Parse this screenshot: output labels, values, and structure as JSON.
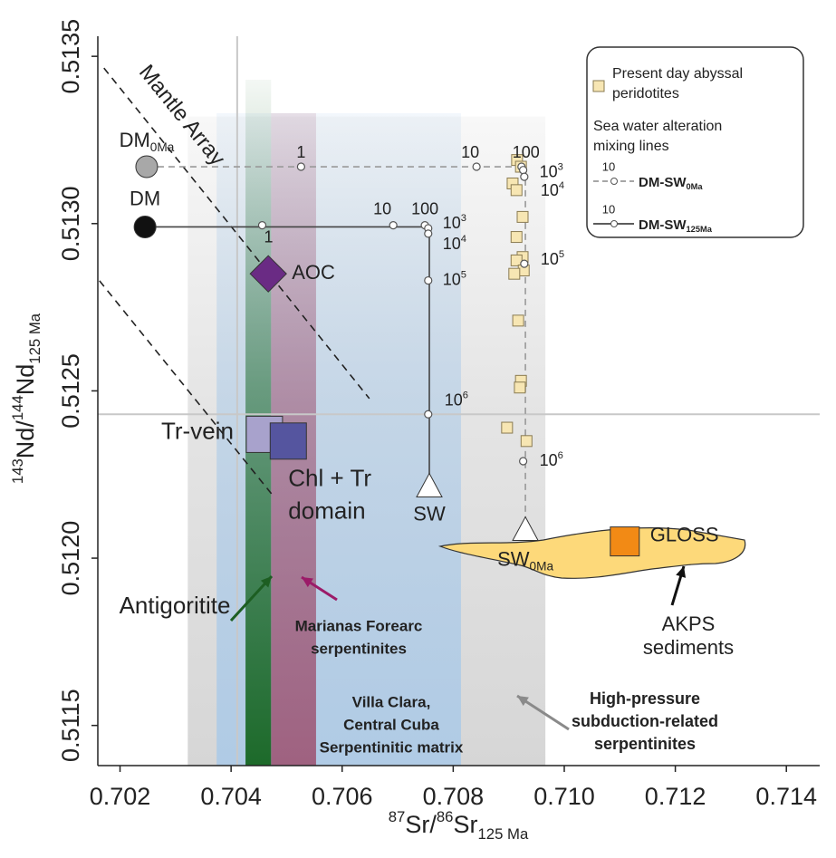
{
  "chart_data": {
    "type": "scatter",
    "xlabel": [
      "87",
      "Sr/",
      "86",
      "Sr",
      "125 Ma"
    ],
    "ylabel": [
      "143",
      "Nd/",
      "144",
      "Nd",
      "125 Ma"
    ],
    "xlim": [
      0.7016,
      0.7146
    ],
    "ylim": [
      0.51138,
      0.51356
    ],
    "xticks": [
      0.702,
      0.704,
      0.706,
      0.708,
      {
        "value": 0.71,
        "label": "0.710"
      },
      0.712,
      0.714
    ],
    "yticks": [
      0.5135,
      {
        "value": 0.513,
        "label": "0.5130"
      },
      0.5125,
      {
        "value": 0.512,
        "label": "0.5120"
      },
      0.5115
    ],
    "reference_lines": {
      "x": 0.70411,
      "y": 0.51243,
      "color": "#c8c8c8"
    },
    "fields": [
      {
        "x": [
          0.70322,
          0.70966
        ],
        "y": [
          0.51138,
          0.51332
        ],
        "color": "#cfcfcf",
        "label": [
          "High-pressure",
          "subduction-related",
          "serpentinites"
        ],
        "label_color": "#9a9a9a"
      },
      {
        "x": [
          0.70374,
          0.70814
        ],
        "y": [
          0.51138,
          0.51333
        ],
        "color": "#a9c9e8",
        "label": [
          "Villa Clara,",
          "Central Cuba",
          "Serpentinitic matrix"
        ],
        "label_color": "#1565c0"
      },
      {
        "x": [
          0.70472,
          0.70553
        ],
        "y": [
          0.51138,
          0.51333
        ],
        "color": "#9c4f6e",
        "label": [
          "Marianas Forearc",
          "serpentinites"
        ],
        "label_color": "#9b1b68"
      },
      {
        "x": [
          0.70426,
          0.70472
        ],
        "y": [
          0.51138,
          0.51343
        ],
        "color": "#1d6a2a",
        "label": [
          "Antigoritite"
        ],
        "label_color": "#1d5e22"
      }
    ],
    "mantle_array": {
      "label": "Mantle Array",
      "lines": [
        {
          "x": [
            0.70171,
            0.70649
          ],
          "y": [
            0.513465,
            0.512477
          ]
        },
        {
          "x": [
            0.70163,
            0.70473
          ],
          "y": [
            0.512829,
            0.512192
          ]
        }
      ]
    },
    "sediments": {
      "label": [
        "AKPS",
        "sediments"
      ]
    },
    "series": [
      {
        "name": "DM-SW",
        "name_sub": "0Ma",
        "color": "#999999",
        "dashed": true,
        "x": [
          0.70248,
          0.7093,
          0.7093
        ],
        "y": [
          0.51317,
          0.51317,
          0.51208
        ],
        "markers": {
          "x": [
            0.70526,
            0.70842,
            0.70923,
            0.70926,
            0.70928,
            0.70928,
            0.70926
          ],
          "y": [
            0.51317,
            0.51317,
            0.51317,
            0.51316,
            0.51314,
            0.51288,
            0.51229
          ],
          "labels": [
            "1",
            "10",
            "100",
            [
              "10",
              "3"
            ],
            [
              "10",
              "4"
            ],
            [
              "10",
              "5"
            ],
            [
              "10",
              "6"
            ]
          ]
        },
        "legend_tick": "10"
      },
      {
        "name": "DM-SW",
        "name_sub": "125Ma",
        "color": "#444444",
        "dashed": false,
        "x": [
          0.70245,
          0.70757,
          0.70757
        ],
        "y": [
          0.51299,
          0.51299,
          0.51221
        ],
        "markers": {
          "x": [
            0.70456,
            0.70692,
            0.70749,
            0.70755,
            0.70755,
            0.70755,
            0.70755
          ],
          "y": [
            0.512995,
            0.512995,
            0.512995,
            0.512986,
            0.51297,
            0.51283,
            0.51243
          ],
          "labels": [
            "1",
            "10",
            "100",
            [
              "10",
              "3"
            ],
            [
              "10",
              "4"
            ],
            [
              "10",
              "5"
            ],
            [
              "10",
              "6"
            ]
          ]
        },
        "legend_tick": "10"
      }
    ],
    "peridotites": {
      "name": [
        "Present day abyssal",
        "peridotites"
      ],
      "color": "#f7e6b3",
      "x": [
        0.70915,
        0.70922,
        0.70907,
        0.70914,
        0.70925,
        0.70914,
        0.70925,
        0.70914,
        0.70927,
        0.7091,
        0.70917,
        0.70922,
        0.7092,
        0.70897,
        0.70932
      ],
      "y": [
        0.51319,
        0.51317,
        0.51312,
        0.5131,
        0.51302,
        0.51296,
        0.5129,
        0.51289,
        0.51286,
        0.51285,
        0.51271,
        0.51253,
        0.51251,
        0.51239,
        0.51235
      ]
    },
    "legend_title": [
      "Sea water alteration",
      "mixing lines"
    ],
    "points": [
      {
        "label": "DM",
        "label_sub": "0Ma",
        "x": 0.70248,
        "y": 0.51317,
        "symbol": "circle",
        "color": "#a8a8a8"
      },
      {
        "label": "DM",
        "x": 0.70245,
        "y": 0.51299,
        "symbol": "circle",
        "color": "#111111"
      },
      {
        "label": "AOC",
        "x": 0.70467,
        "y": 0.51285,
        "symbol": "diamond",
        "color": "#6a2b84"
      },
      {
        "label": "Tr-vein",
        "x": 0.7046,
        "y": 0.51237,
        "symbol": "square",
        "color": "#a8a2cc",
        "label_color": "#8e87bf"
      },
      {
        "label": [
          "Chl + Tr",
          "domain"
        ],
        "x": 0.70503,
        "y": 0.51235,
        "symbol": "square",
        "color": "#55559f",
        "label_color": "#5451a3"
      },
      {
        "label": "GLOSS",
        "x": 0.71109,
        "y": 0.51205,
        "symbol": "square",
        "color": "#f28a15"
      },
      {
        "label": "SW",
        "x": 0.70757,
        "y": 0.51221,
        "symbol": "triangle",
        "color": "#ffffff"
      },
      {
        "label": "SW",
        "label_sub": "0Ma",
        "x": 0.7093,
        "y": 0.51208,
        "symbol": "triangle",
        "color": "#ffffff"
      }
    ]
  }
}
